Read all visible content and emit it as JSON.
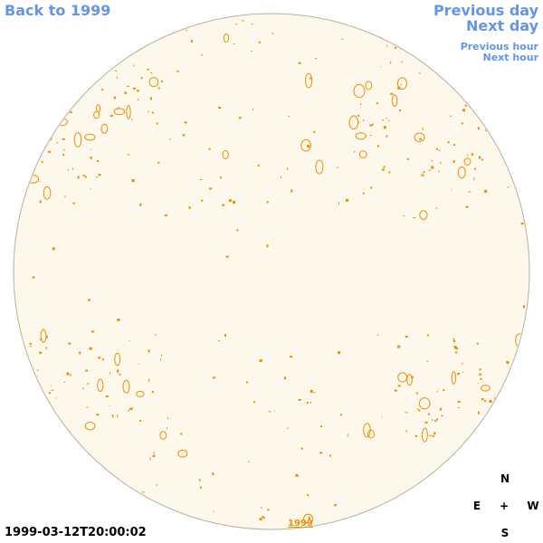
{
  "nav": {
    "back": "Back to 1999",
    "previous_day": "Previous day",
    "next_day": "Next day",
    "previous_hour": "Previous hour",
    "next_hour": "Next hour"
  },
  "footer": {
    "timestamp": "1999-03-12T20:00:02",
    "year_link": "1999"
  },
  "compass": {
    "north": "N",
    "east": "E",
    "center": "+",
    "west": "W",
    "south": "S"
  }
}
